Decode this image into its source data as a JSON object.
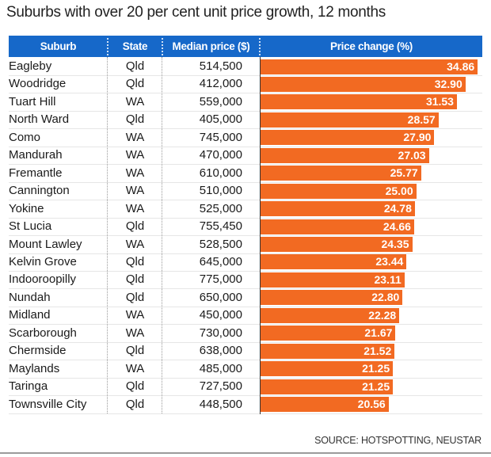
{
  "chart_data": {
    "type": "bar",
    "orientation": "horizontal",
    "title": "Suburbs with over 20 per cent unit price growth, 12 months",
    "columns": [
      "Suburb",
      "State",
      "Median price ($)",
      "Price change (%)"
    ],
    "rows": [
      {
        "suburb": "Eagleby",
        "state": "Qld",
        "price": "514,500",
        "change": 34.86,
        "change_label": "34.86"
      },
      {
        "suburb": "Woodridge",
        "state": "Qld",
        "price": "412,000",
        "change": 32.9,
        "change_label": "32.90"
      },
      {
        "suburb": "Tuart Hill",
        "state": "WA",
        "price": "559,000",
        "change": 31.53,
        "change_label": "31.53"
      },
      {
        "suburb": "North Ward",
        "state": "Qld",
        "price": "405,000",
        "change": 28.57,
        "change_label": "28.57"
      },
      {
        "suburb": "Como",
        "state": "WA",
        "price": "745,000",
        "change": 27.9,
        "change_label": "27.90"
      },
      {
        "suburb": "Mandurah",
        "state": "WA",
        "price": "470,000",
        "change": 27.03,
        "change_label": "27.03"
      },
      {
        "suburb": "Fremantle",
        "state": "WA",
        "price": "610,000",
        "change": 25.77,
        "change_label": "25.77"
      },
      {
        "suburb": "Cannington",
        "state": "WA",
        "price": "510,000",
        "change": 25.0,
        "change_label": "25.00"
      },
      {
        "suburb": "Yokine",
        "state": "WA",
        "price": "525,000",
        "change": 24.78,
        "change_label": "24.78"
      },
      {
        "suburb": "St Lucia",
        "state": "Qld",
        "price": "755,450",
        "change": 24.66,
        "change_label": "24.66"
      },
      {
        "suburb": "Mount Lawley",
        "state": "WA",
        "price": "528,500",
        "change": 24.35,
        "change_label": "24.35"
      },
      {
        "suburb": "Kelvin Grove",
        "state": "Qld",
        "price": "645,000",
        "change": 23.44,
        "change_label": "23.44"
      },
      {
        "suburb": "Indooroopilly",
        "state": "Qld",
        "price": "775,000",
        "change": 23.11,
        "change_label": "23.11"
      },
      {
        "suburb": "Nundah",
        "state": "Qld",
        "price": "650,000",
        "change": 22.8,
        "change_label": "22.80"
      },
      {
        "suburb": "Midland",
        "state": "WA",
        "price": "450,000",
        "change": 22.28,
        "change_label": "22.28"
      },
      {
        "suburb": "Scarborough",
        "state": "WA",
        "price": "730,000",
        "change": 21.67,
        "change_label": "21.67"
      },
      {
        "suburb": "Chermside",
        "state": "Qld",
        "price": "638,000",
        "change": 21.52,
        "change_label": "21.52"
      },
      {
        "suburb": "Maylands",
        "state": "WA",
        "price": "485,000",
        "change": 21.25,
        "change_label": "21.25"
      },
      {
        "suburb": "Taringa",
        "state": "Qld",
        "price": "727,500",
        "change": 21.25,
        "change_label": "21.25"
      },
      {
        "suburb": "Townsville City",
        "state": "Qld",
        "price": "448,500",
        "change": 20.56,
        "change_label": "20.56"
      }
    ],
    "xlim": [
      0,
      35.6
    ],
    "grid": false,
    "source": "SOURCE: HOTSPOTTING, NEUSTAR",
    "colors": {
      "header": "#1668c9",
      "bar": "#f26a22"
    }
  }
}
